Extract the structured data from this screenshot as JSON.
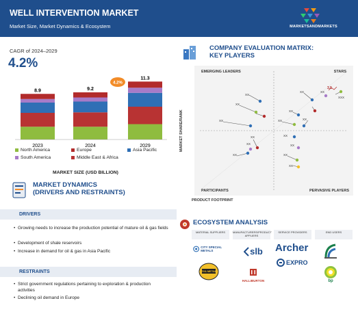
{
  "header": {
    "title": "WELL INTERVENTION MARKET",
    "subtitle": "Market Size, Market Dynamics & Ecosystem",
    "brand": "MARKETSANDMARKETS"
  },
  "cagr": {
    "label": "CAGR of 2024–2029",
    "value": "4.2%",
    "bubble": "4.2%"
  },
  "chart_data": {
    "type": "bar",
    "stacked": true,
    "categories": [
      "2023",
      "2024",
      "2029"
    ],
    "totals": [
      "8.9",
      "9.2",
      "11.3"
    ],
    "series": [
      {
        "name": "North America",
        "color": "#8fbc3f",
        "values": [
          2.5,
          2.5,
          3.0
        ]
      },
      {
        "name": "Europe",
        "color": "#b22b2b",
        "values": [
          1.0,
          1.0,
          1.2
        ]
      },
      {
        "name": "Asia Pacific",
        "color": "#2f6fb5",
        "values": [
          2.0,
          2.1,
          2.7
        ]
      },
      {
        "name": "South America",
        "color": "#a77bc8",
        "values": [
          0.7,
          0.8,
          1.0
        ]
      },
      {
        "name": "Middle East & Africa",
        "color": "#b83333",
        "values": [
          2.7,
          2.8,
          3.4
        ]
      }
    ],
    "xlabel": "MARKET SIZE (USD BILLION)",
    "ylim": [
      0,
      12
    ]
  },
  "market_dynamics": {
    "title_line1": "MARKET DYNAMICS",
    "title_line2": "(DRIVERS AND RESTRAINTS)",
    "drivers_label": "DRIVERS",
    "drivers": [
      "Growing needs to increase the production potential of mature oil & gas fields",
      "Development of shale reservoirs",
      "Increase in demand for oil & gas in Asia Pacific"
    ],
    "restraints_label": "RESTRAINTS",
    "restraints": [
      "Strict government regulations pertaining to exploration & production activities",
      "Declining oil demand in Europe"
    ]
  },
  "matrix": {
    "title_line1": "COMPANY EVALUATION MATRIX:",
    "title_line2": "KEY PLAYERS",
    "emerging": "EMERGING LEADERS",
    "stars": "STARS",
    "participants": "PARTICIPANTS",
    "pervasive": "PERVASIVE PLAYERS",
    "y_axis": "MARKET SHARE/RANK",
    "x_axis": "PRODUCT FOOTPRINT",
    "point_label": "XX",
    "highlight_label": "3.5"
  },
  "ecosystem": {
    "title": "ECOSYSTEM ANALYSIS",
    "columns": [
      "MATERIAL SUPPLIERS",
      "MANUFACTURERS/PRODUCT APPLIERS",
      "SERVICE PROVIDERS",
      "END USERS"
    ],
    "logos": {
      "city_special_metals": "CITY SPECIAL METALS",
      "arya_metals": "ARYA METALS",
      "slb": "slb",
      "halliburton": "HALLIBURTON",
      "archer": "Archer",
      "expro": "EXPRO",
      "bp": "bp"
    }
  },
  "colors": {
    "brand_blue": "#1f4e8c",
    "accent_orange": "#f28c28"
  }
}
